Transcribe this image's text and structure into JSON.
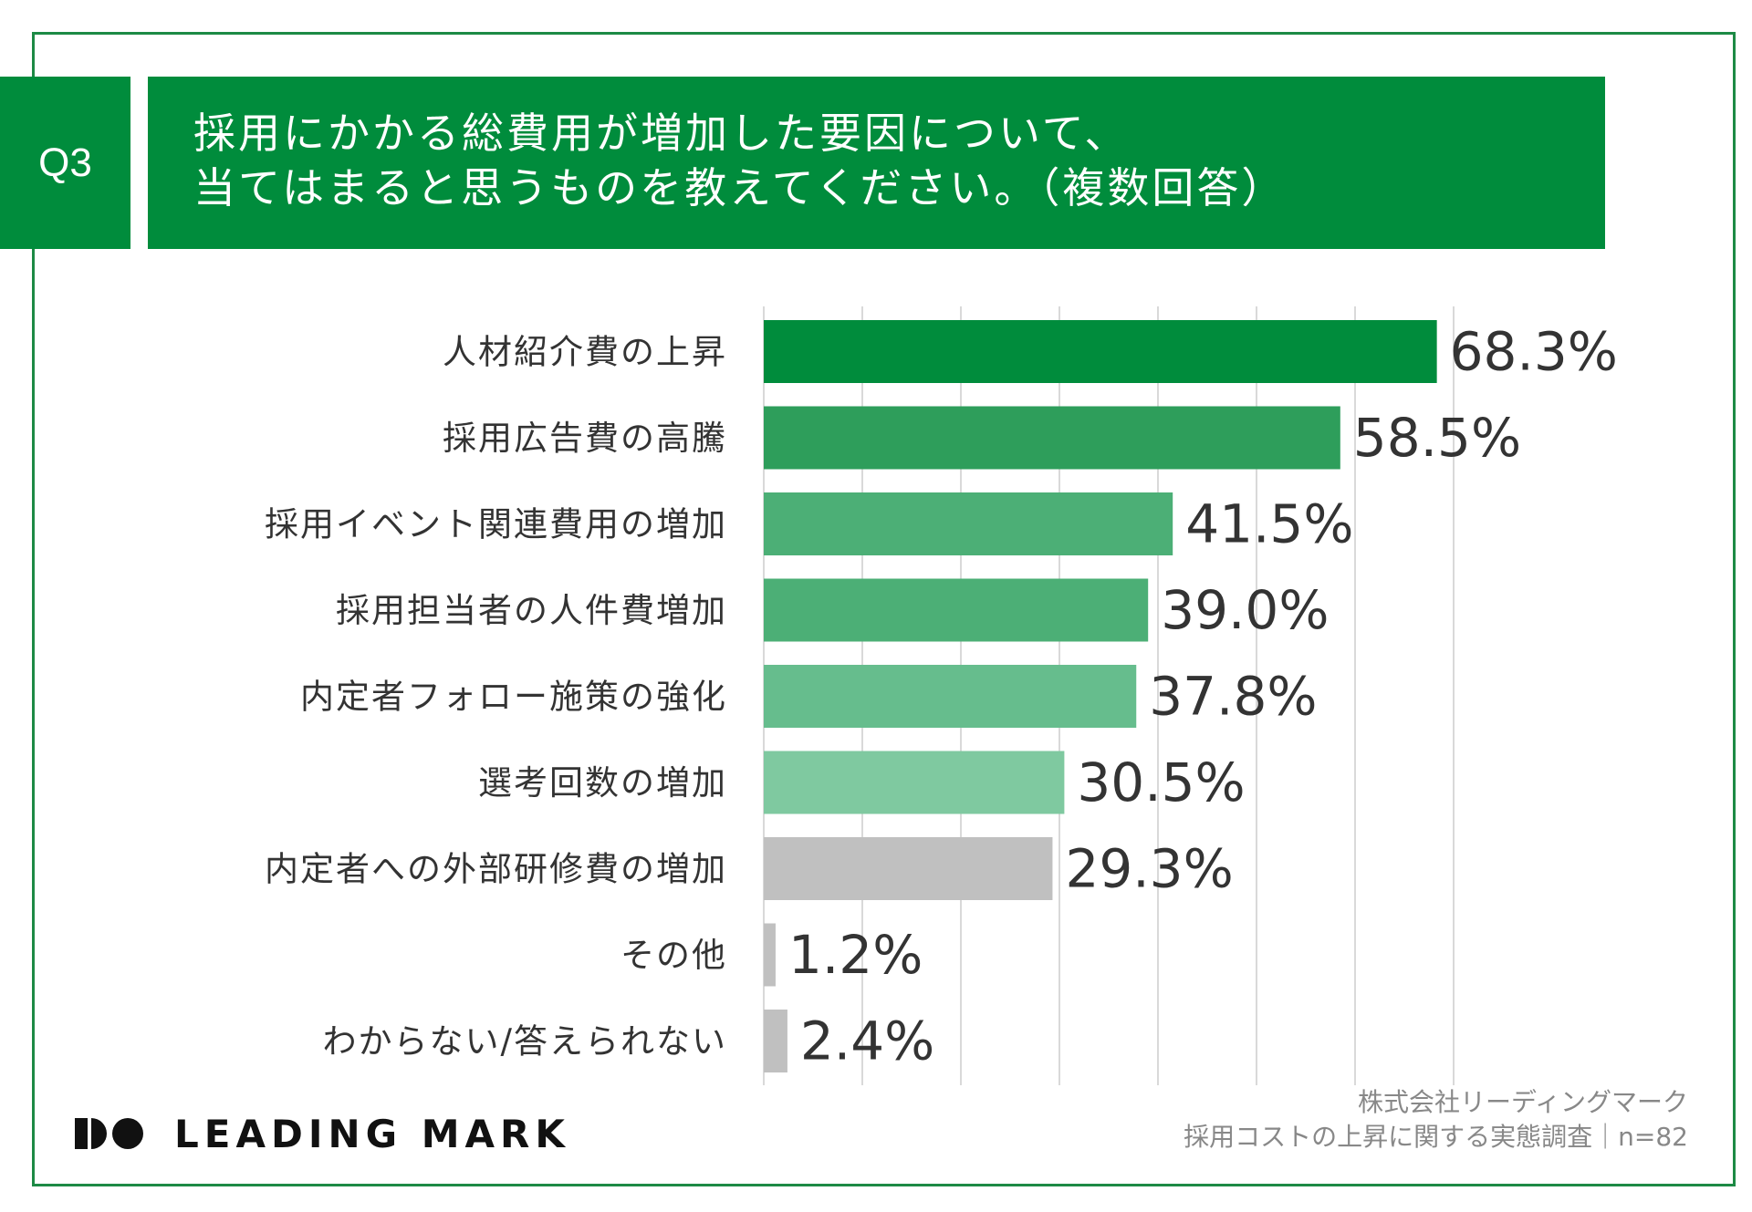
{
  "question": {
    "badge": "Q3",
    "line1": "採用にかかる総費用が増加した要因について、",
    "line2": "当てはまると思うものを教えてください。（複数回答）"
  },
  "chart_data": {
    "type": "bar",
    "orientation": "horizontal",
    "title": "採用にかかる総費用が増加した要因について、当てはまると思うものを教えてください。（複数回答）",
    "categories": [
      "人材紹介費の上昇",
      "採用広告費の高騰",
      "採用イベント関連費用の増加",
      "採用担当者の人件費増加",
      "内定者フォロー施策の強化",
      "選考回数の増加",
      "内定者への外部研修費の増加",
      "その他",
      "わからない/答えられない"
    ],
    "values": [
      68.3,
      58.5,
      41.5,
      39.0,
      37.8,
      30.5,
      29.3,
      1.2,
      2.4
    ],
    "value_labels": [
      "68.3%",
      "58.5%",
      "41.5%",
      "39.0%",
      "37.8%",
      "30.5%",
      "29.3%",
      "1.2%",
      "2.4%"
    ],
    "colors": [
      "#008c3c",
      "#2e9e5b",
      "#4caf76",
      "#4caf76",
      "#66bd8d",
      "#7fc9a0",
      "#c0c0c0",
      "#c0c0c0",
      "#c0c0c0"
    ],
    "xlim": [
      0,
      70
    ],
    "grid": true,
    "unit": "%"
  },
  "logo": {
    "text": "LEADING MARK"
  },
  "source": {
    "line1": "株式会社リーディングマーク",
    "line2": "採用コストの上昇に関する実態調査｜n=82"
  }
}
